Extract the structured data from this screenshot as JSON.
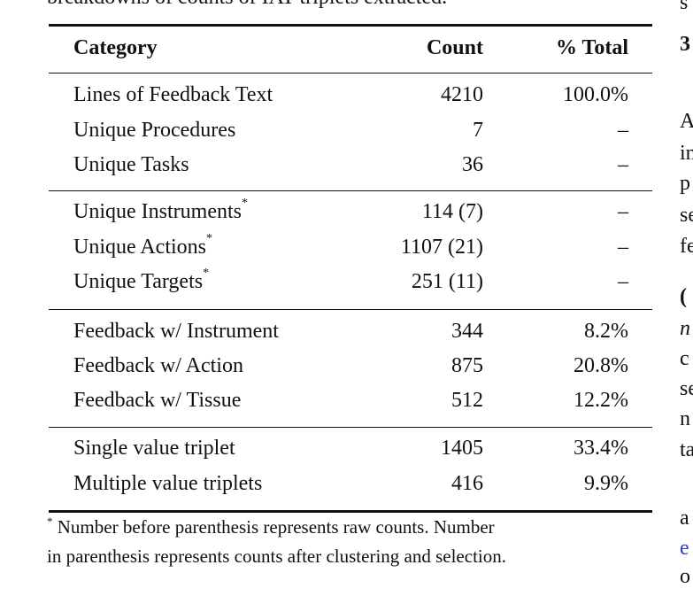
{
  "caption_fragment": "breakdowns of counts of IAT triplets extracted.",
  "table": {
    "headers": [
      "Category",
      "Count",
      "% Total"
    ],
    "groups": [
      [
        {
          "category": "Lines of Feedback Text",
          "count": "4210",
          "pct": "100.0%"
        },
        {
          "category": "Unique Procedures",
          "count": "7",
          "pct": "–"
        },
        {
          "category": "Unique Tasks",
          "count": "36",
          "pct": "–"
        }
      ],
      [
        {
          "category": "Unique Instruments",
          "mark": "*",
          "count": "114 (7)",
          "pct": "–"
        },
        {
          "category": "Unique Actions",
          "mark": "*",
          "count": "1107 (21)",
          "pct": "–"
        },
        {
          "category": "Unique Targets",
          "mark": "*",
          "count": "251 (11)",
          "pct": "–"
        }
      ],
      [
        {
          "category": "Feedback w/ Instrument",
          "count": "344",
          "pct": "8.2%"
        },
        {
          "category": "Feedback w/ Action",
          "count": "875",
          "pct": "20.8%"
        },
        {
          "category": "Feedback w/ Tissue",
          "count": "512",
          "pct": "12.2%"
        }
      ],
      [
        {
          "category": "Single value triplet",
          "count": "1405",
          "pct": "33.4%"
        },
        {
          "category": "Multiple value triplets",
          "count": "416",
          "pct": "9.9%"
        }
      ]
    ],
    "footnote_mark": "*",
    "footnote_line1": "Number before parenthesis represents raw counts. Number",
    "footnote_line2": "in parenthesis represents counts after clustering and selection."
  },
  "right_column_fragments": [
    "s",
    "3",
    "A",
    "in",
    "p",
    "se",
    "fe",
    "(",
    "n",
    "c",
    "se",
    "n",
    "ta",
    "a",
    "e",
    "o"
  ]
}
